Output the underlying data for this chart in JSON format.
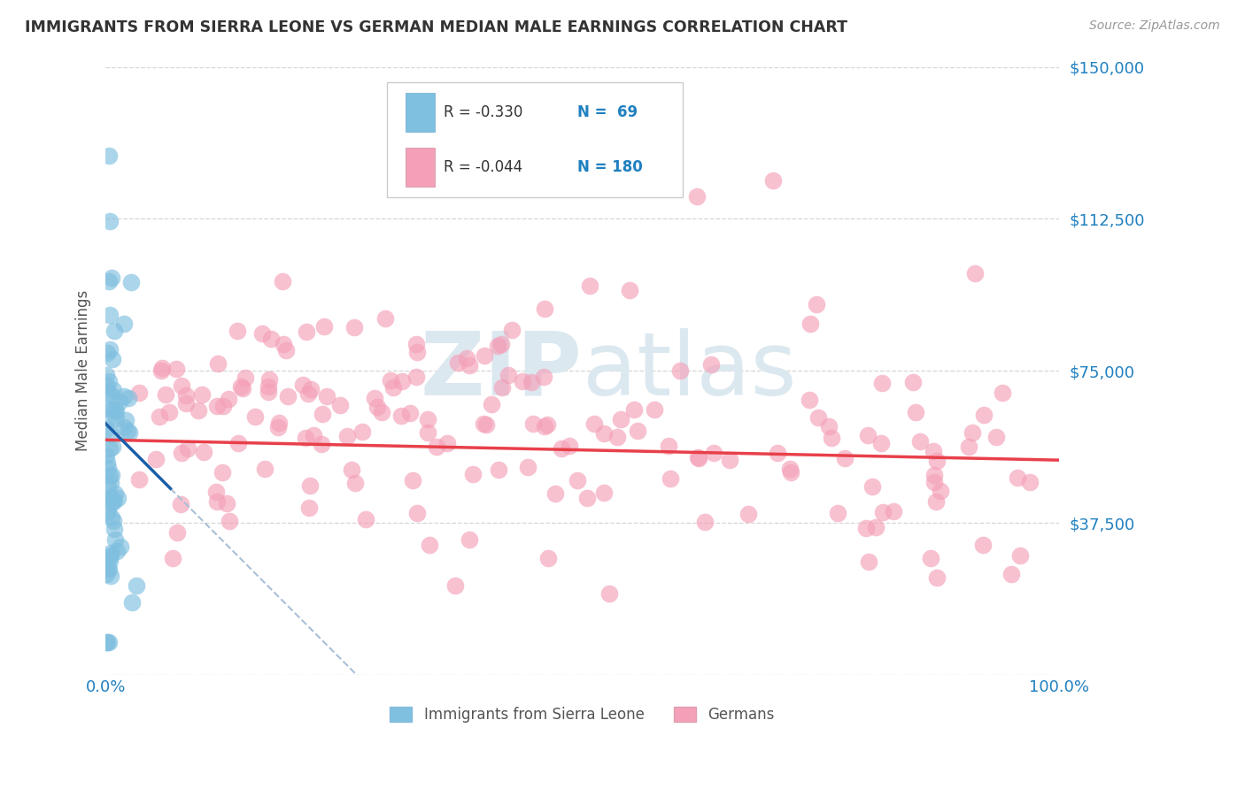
{
  "title": "IMMIGRANTS FROM SIERRA LEONE VS GERMAN MEDIAN MALE EARNINGS CORRELATION CHART",
  "source": "Source: ZipAtlas.com",
  "ylabel": "Median Male Earnings",
  "y_ticks": [
    0,
    37500,
    75000,
    112500,
    150000
  ],
  "y_tick_labels": [
    "",
    "$37,500",
    "$75,000",
    "$112,500",
    "$150,000"
  ],
  "legend_r1": "R = -0.330",
  "legend_n1": "N =  69",
  "legend_r2": "R = -0.044",
  "legend_n2": "N = 180",
  "color_blue": "#7fbfdf",
  "color_pink": "#f4a0b8",
  "color_blue_line": "#1a5fa8",
  "color_pink_line": "#e8404a",
  "color_dashed": "#aabfd8",
  "watermark_zip": "ZIP",
  "watermark_atlas": "atlas",
  "watermark_color": "#dce8f0",
  "ylim": [
    0,
    150000
  ],
  "xlim": [
    0.0,
    1.0
  ],
  "n_blue": 69,
  "n_pink": 180,
  "background_color": "#ffffff",
  "grid_color": "#cccccc",
  "title_color": "#333333",
  "tick_label_color": "#2080c0",
  "legend_r_color": "#333333",
  "legend_n_color": "#2080c0"
}
